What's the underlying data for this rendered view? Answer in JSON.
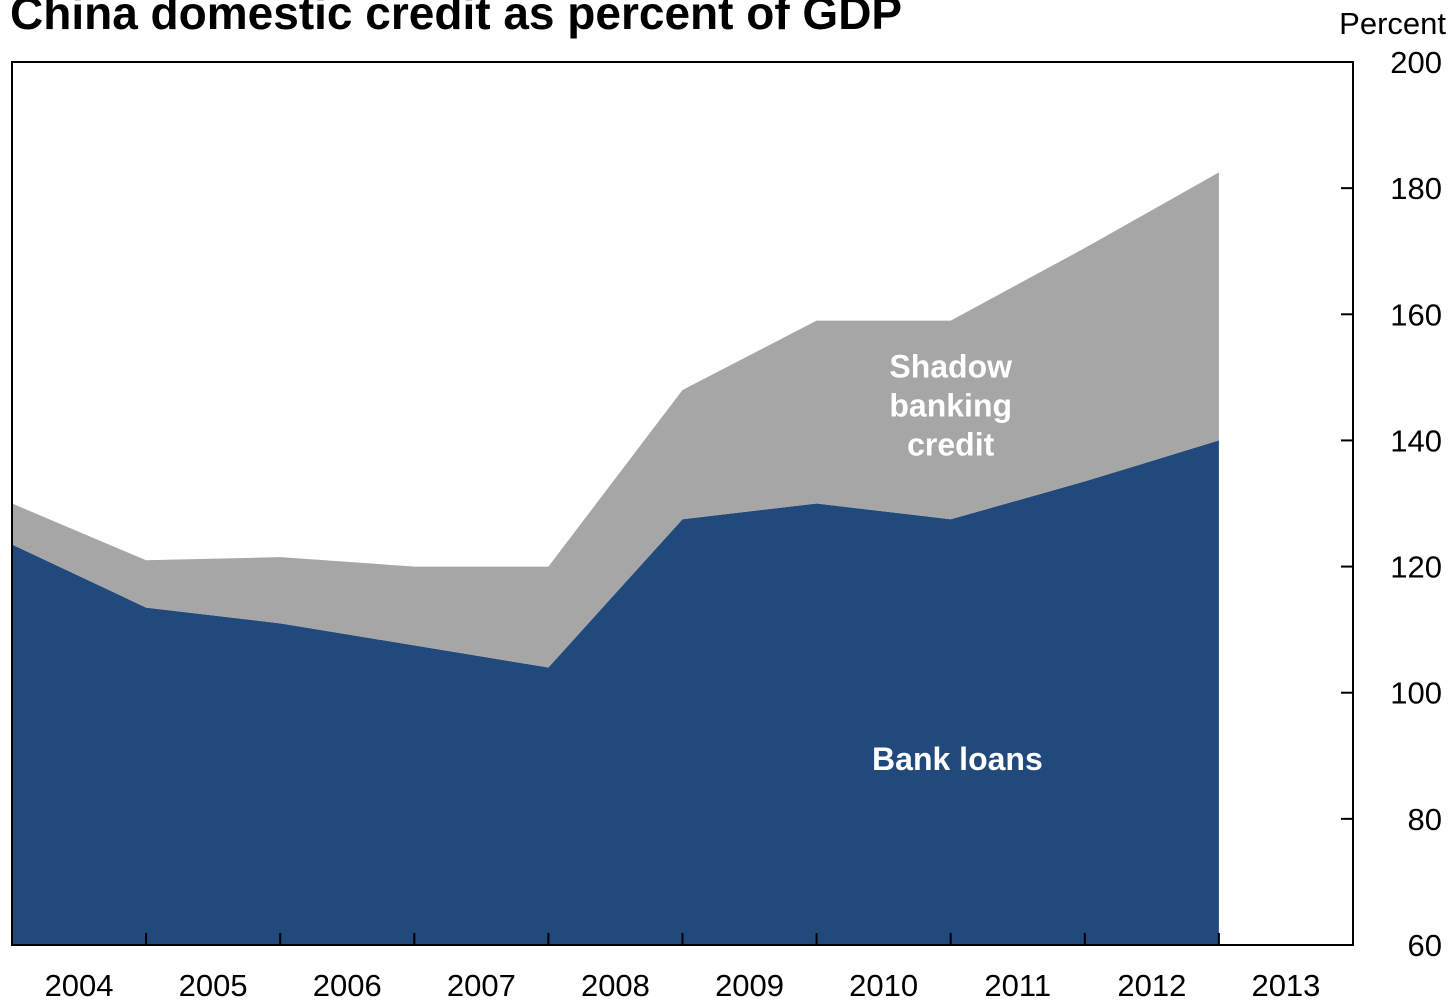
{
  "chart_data": {
    "type": "area",
    "title": "China domestic credit as percent of GDP",
    "ylabel": "Percent",
    "ylim": [
      60,
      200
    ],
    "yticks": [
      60,
      80,
      100,
      120,
      140,
      160,
      180,
      200
    ],
    "x_labels": [
      "2004",
      "2005",
      "2006",
      "2007",
      "2008",
      "2009",
      "2010",
      "2011",
      "2012",
      "2013"
    ],
    "x": [
      2003.5,
      2004.5,
      2005.5,
      2006.5,
      2007.5,
      2008.5,
      2009.5,
      2010.5,
      2011.5,
      2012.5
    ],
    "series": [
      {
        "name": "Bank loans",
        "label_lines": [
          "Bank loans"
        ],
        "color": "#21497c",
        "values": [
          123.5,
          113.5,
          111,
          107.5,
          104,
          127.5,
          130,
          127.5,
          133.5,
          140
        ]
      },
      {
        "name": "Shadow banking credit",
        "label_lines": [
          "Shadow",
          "banking",
          "credit"
        ],
        "color": "#a6a6a6",
        "values": [
          6.5,
          7.5,
          10.5,
          12.5,
          16,
          20.5,
          29,
          31.5,
          37,
          42.5
        ]
      }
    ],
    "grid": false,
    "legend": "inline labels"
  }
}
